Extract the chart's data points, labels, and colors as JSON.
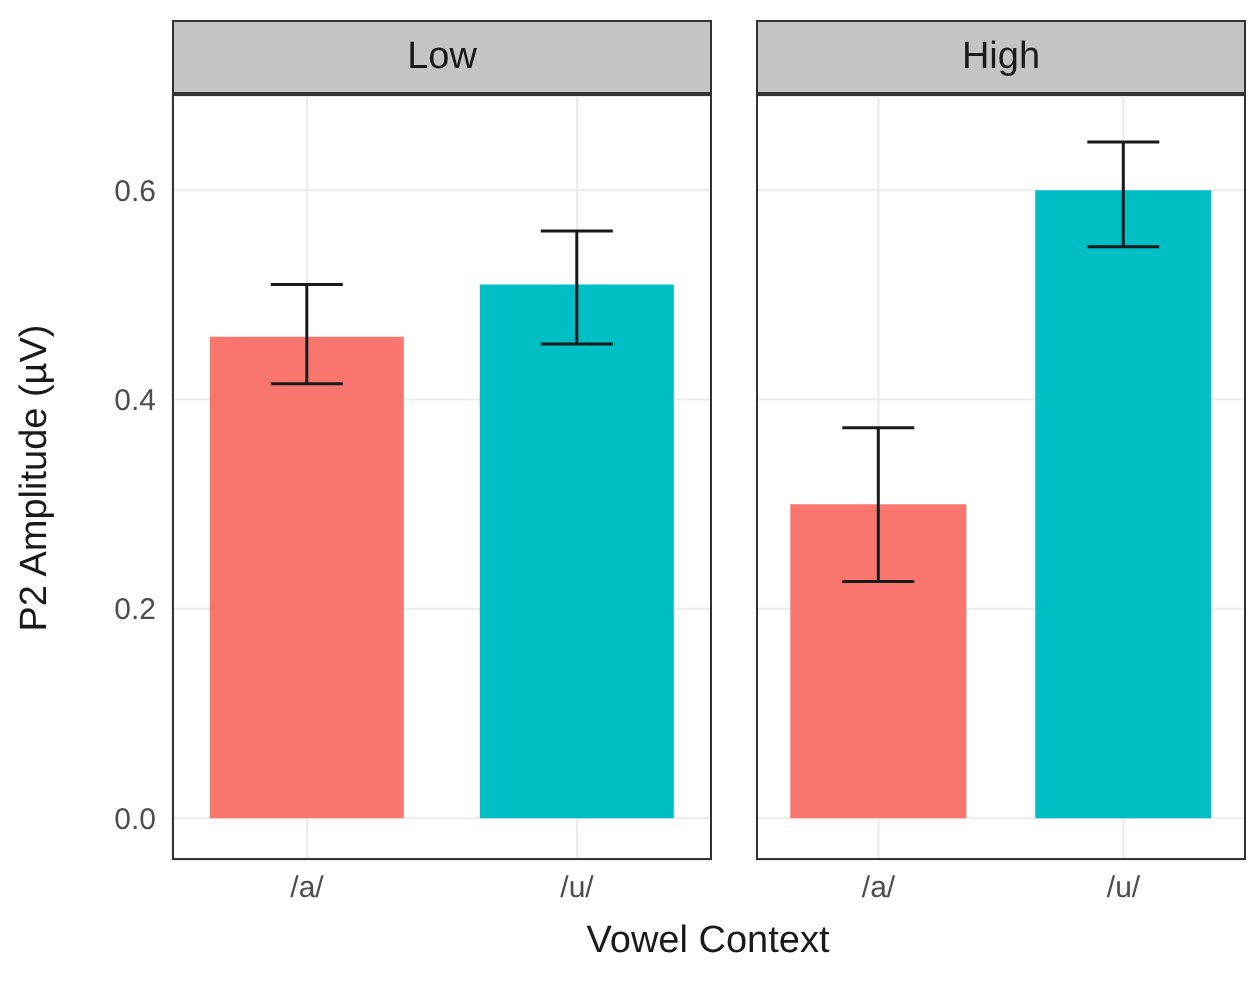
{
  "chart_data": [
    {
      "type": "bar",
      "title": "Low",
      "ylabel": "P2 Amplitude (µV)",
      "xlabel": "Vowel Context",
      "categories": [
        "/a/",
        "/u/"
      ],
      "values": [
        0.46,
        0.51
      ],
      "colors": [
        "#f8766d",
        "#00bfc4"
      ],
      "errors": [
        [
          0.415,
          0.51
        ],
        [
          0.453,
          0.561
        ]
      ],
      "ylim": [
        -0.04,
        0.69
      ],
      "yticks": [
        {
          "value": 0,
          "label": "0.0"
        },
        0.2,
        0.4,
        0.6
      ],
      "grid": true
    },
    {
      "type": "bar",
      "title": "High",
      "categories": [
        "/a/",
        "/u/"
      ],
      "values": [
        0.3,
        0.6
      ],
      "colors": [
        "#f8766d",
        "#00bfc4"
      ],
      "errors": [
        [
          0.226,
          0.373
        ],
        [
          0.546,
          0.646
        ]
      ],
      "ylim": [
        -0.04,
        0.69
      ],
      "yticks": [
        0,
        0.2,
        0.4,
        0.6
      ],
      "grid": true,
      "tick_labels": "x"
    }
  ]
}
